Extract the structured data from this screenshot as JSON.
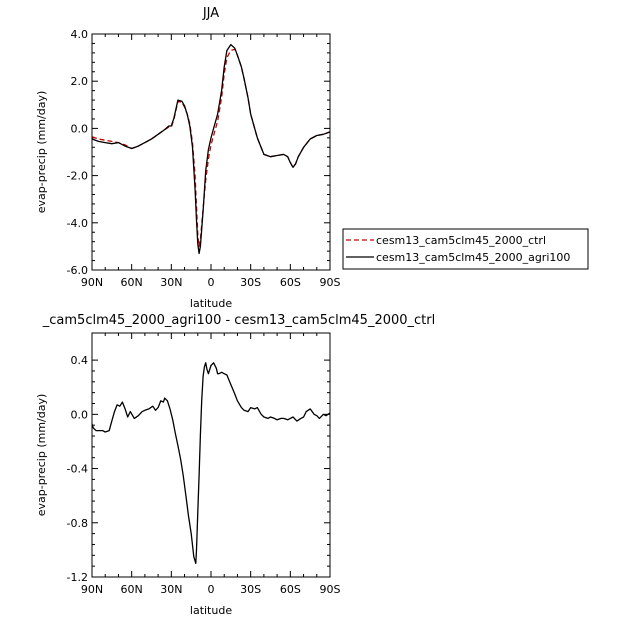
{
  "chart_data": [
    {
      "type": "line",
      "title": "JJA",
      "xlabel": "latitude",
      "ylabel": "evap-precip (mm/day)",
      "xlim": [
        90,
        -90
      ],
      "ylim": [
        -6.0,
        4.0
      ],
      "xticks": [
        90,
        60,
        30,
        0,
        -30,
        -60,
        -90
      ],
      "xtick_labels": [
        "90N",
        "60N",
        "30N",
        "0",
        "30S",
        "60S",
        "90S"
      ],
      "yticks": [
        -6,
        -4,
        -2,
        0,
        2,
        4
      ],
      "ytick_labels": [
        "-6.0",
        "-4.0",
        "-2.0",
        "0.0",
        "2.0",
        "4.0"
      ],
      "legend_position": "right",
      "series": [
        {
          "name": "cesm13_cam5clm45_2000_ctrl",
          "color": "#cc0000",
          "dash": "dashed",
          "x": [
            90,
            85,
            80,
            75,
            70,
            65,
            60,
            55,
            50,
            45,
            40,
            35,
            32,
            30,
            28,
            25,
            22,
            20,
            18,
            16,
            14,
            12,
            11,
            10,
            9,
            8,
            6,
            4,
            2,
            0,
            -2,
            -5,
            -8,
            -10,
            -12,
            -15,
            -18,
            -20,
            -23,
            -25,
            -28,
            -30,
            -35,
            -40,
            -45,
            -50,
            -55,
            -58,
            -60,
            -62,
            -64,
            -66,
            -70,
            -75,
            -80,
            -85,
            -90
          ],
          "y": [
            -0.35,
            -0.45,
            -0.5,
            -0.55,
            -0.6,
            -0.7,
            -0.85,
            -0.75,
            -0.6,
            -0.45,
            -0.25,
            -0.05,
            0.05,
            0.05,
            0.4,
            1.15,
            1.1,
            0.9,
            0.6,
            0.2,
            -0.6,
            -2.0,
            -3.3,
            -4.5,
            -5.0,
            -4.7,
            -3.4,
            -2.2,
            -1.3,
            -0.7,
            -0.3,
            0.3,
            1.3,
            2.3,
            3.0,
            3.3,
            3.35,
            3.1,
            2.6,
            2.1,
            1.3,
            0.6,
            -0.4,
            -1.1,
            -1.2,
            -1.15,
            -1.1,
            -1.2,
            -1.45,
            -1.65,
            -1.5,
            -1.2,
            -0.8,
            -0.45,
            -0.3,
            -0.25,
            -0.15
          ]
        },
        {
          "name": "cesm13_cam5clm45_2000_agri100",
          "color": "#000000",
          "dash": "solid",
          "x": [
            90,
            85,
            80,
            75,
            70,
            65,
            60,
            55,
            50,
            45,
            40,
            35,
            32,
            30,
            28,
            25,
            22,
            20,
            18,
            16,
            14,
            12,
            11,
            10,
            9,
            8,
            6,
            4,
            2,
            0,
            -2,
            -5,
            -8,
            -10,
            -12,
            -15,
            -18,
            -20,
            -23,
            -25,
            -28,
            -30,
            -35,
            -40,
            -45,
            -50,
            -55,
            -58,
            -60,
            -62,
            -64,
            -66,
            -70,
            -75,
            -80,
            -85,
            -90
          ],
          "y": [
            -0.45,
            -0.55,
            -0.6,
            -0.65,
            -0.6,
            -0.75,
            -0.85,
            -0.75,
            -0.6,
            -0.45,
            -0.25,
            -0.05,
            0.1,
            0.1,
            0.45,
            1.2,
            1.15,
            0.95,
            0.6,
            0.1,
            -0.8,
            -2.6,
            -3.9,
            -4.9,
            -5.3,
            -5.0,
            -3.5,
            -1.8,
            -0.9,
            -0.4,
            0.0,
            0.6,
            1.6,
            2.6,
            3.3,
            3.55,
            3.4,
            3.1,
            2.6,
            2.1,
            1.3,
            0.6,
            -0.4,
            -1.1,
            -1.2,
            -1.15,
            -1.1,
            -1.2,
            -1.45,
            -1.65,
            -1.5,
            -1.2,
            -0.8,
            -0.45,
            -0.3,
            -0.25,
            -0.15
          ]
        }
      ]
    },
    {
      "type": "line",
      "title": "_cam5clm45_2000_agri100 - cesm13_cam5clm45_2000_ctrl",
      "xlabel": "latitude",
      "ylabel": "evap-precip (mm/day)",
      "xlim": [
        90,
        -90
      ],
      "ylim": [
        -1.2,
        0.6
      ],
      "xticks": [
        90,
        60,
        30,
        0,
        -30,
        -60,
        -90
      ],
      "xtick_labels": [
        "90N",
        "60N",
        "30N",
        "0",
        "30S",
        "60S",
        "90S"
      ],
      "yticks": [
        -1.2,
        -0.8,
        -0.4,
        0.0,
        0.4
      ],
      "ytick_labels": [
        "-1.2",
        "-0.8",
        "-0.4",
        "0.0",
        "0.4"
      ],
      "series": [
        {
          "color": "#000000",
          "dash": "solid",
          "x": [
            90,
            89,
            87,
            85,
            82,
            80,
            77,
            75,
            73,
            71,
            69,
            67,
            65,
            63,
            61,
            58,
            55,
            52,
            50,
            47,
            44,
            42,
            40,
            38,
            36,
            35,
            34,
            33,
            31,
            29,
            27,
            25,
            23,
            21,
            19,
            17,
            15,
            13,
            11.5,
            11,
            10,
            9,
            8,
            7,
            6,
            5,
            4,
            3,
            2,
            0,
            -2,
            -4,
            -5,
            -6,
            -8,
            -10,
            -12,
            -15,
            -18,
            -20,
            -23,
            -25,
            -28,
            -30,
            -33,
            -35,
            -38,
            -40,
            -43,
            -45,
            -48,
            -50,
            -53,
            -55,
            -58,
            -60,
            -62,
            -65,
            -68,
            -70,
            -72,
            -75,
            -78,
            -80,
            -82,
            -85,
            -87,
            -90
          ],
          "y": [
            -0.07,
            -0.1,
            -0.12,
            -0.12,
            -0.12,
            -0.13,
            -0.12,
            -0.05,
            0.02,
            0.07,
            0.06,
            0.09,
            0.04,
            -0.02,
            0.02,
            -0.03,
            -0.01,
            0.02,
            0.03,
            0.04,
            0.06,
            0.03,
            0.05,
            0.1,
            0.09,
            0.12,
            0.11,
            0.1,
            0.04,
            -0.04,
            -0.14,
            -0.23,
            -0.33,
            -0.45,
            -0.6,
            -0.75,
            -0.88,
            -1.05,
            -1.1,
            -1.0,
            -0.72,
            -0.45,
            -0.15,
            0.1,
            0.28,
            0.35,
            0.38,
            0.33,
            0.3,
            0.36,
            0.38,
            0.34,
            0.3,
            0.3,
            0.31,
            0.3,
            0.29,
            0.22,
            0.15,
            0.1,
            0.05,
            0.03,
            0.02,
            0.05,
            0.04,
            0.05,
            0.0,
            -0.02,
            -0.03,
            -0.02,
            -0.03,
            -0.04,
            -0.03,
            -0.03,
            -0.04,
            -0.03,
            -0.02,
            -0.05,
            -0.03,
            -0.02,
            0.02,
            0.04,
            0.0,
            -0.01,
            -0.03,
            0.0,
            -0.01,
            0.01
          ]
        }
      ]
    }
  ]
}
